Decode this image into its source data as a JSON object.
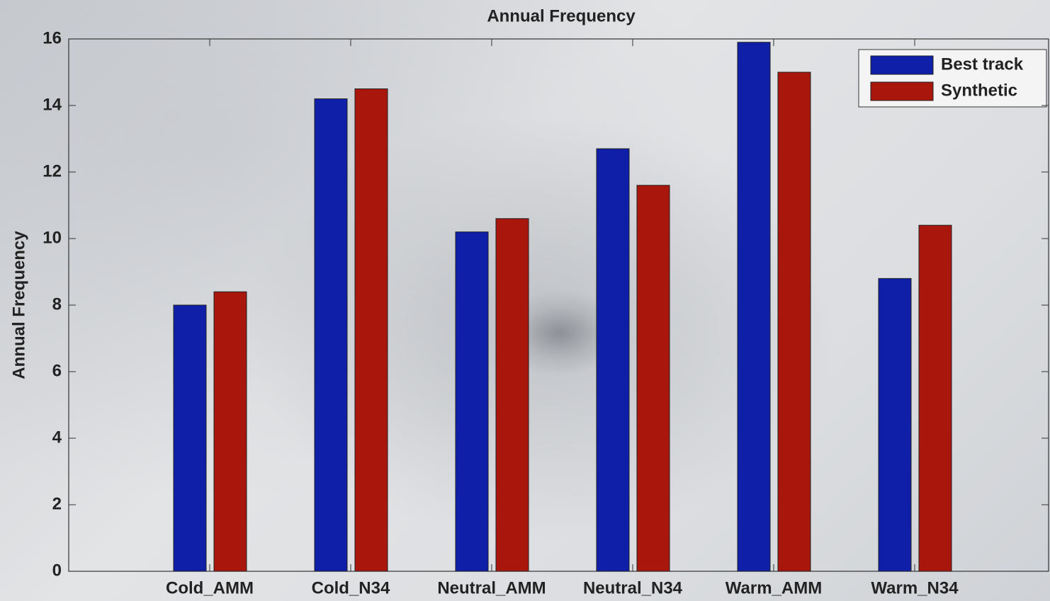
{
  "chart_data": {
    "type": "bar",
    "title": "Annual Frequency",
    "y_label": "Annual Frequency",
    "categories": [
      "Cold_AMM",
      "Cold_N34",
      "Neutral_AMM",
      "Neutral_N34",
      "Warm_AMM",
      "Warm_N34"
    ],
    "series": [
      {
        "name": "Best track",
        "color": "#0f1fa8",
        "values": [
          8.0,
          14.2,
          10.2,
          12.7,
          15.9,
          8.8
        ]
      },
      {
        "name": "Synthetic",
        "color": "#a8160c",
        "values": [
          8.4,
          14.5,
          10.6,
          11.6,
          15.0,
          10.4
        ]
      }
    ],
    "ylim": [
      0,
      16
    ],
    "yticks": [
      0,
      2,
      4,
      6,
      8,
      10,
      12,
      14,
      16
    ],
    "legend": "upper right"
  }
}
